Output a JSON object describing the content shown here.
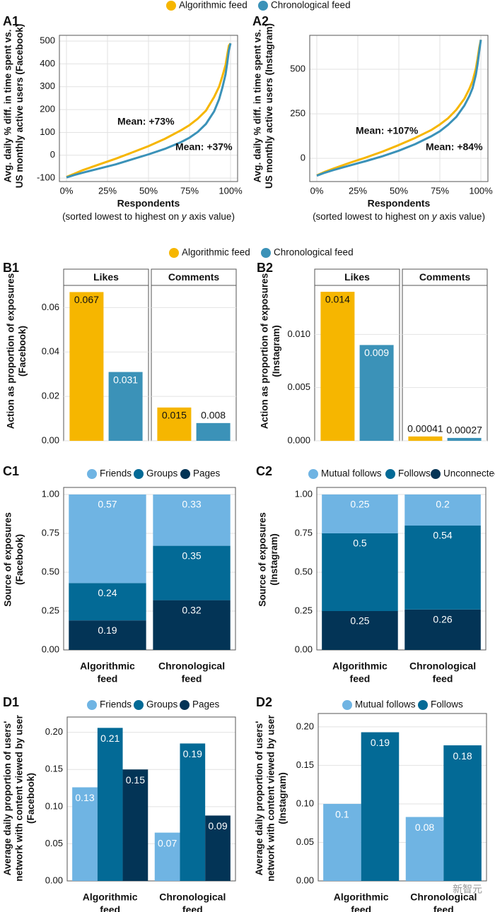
{
  "colors": {
    "algorithmic": "#F6B600",
    "chronological": "#3B92B8",
    "friends": "#6FB4E3",
    "groups": "#036A96",
    "pages": "#033456",
    "grid": "#e2e2e2",
    "watermark": "#9a9a9a"
  },
  "legendA": {
    "items": [
      "Algorithmic feed",
      "Chronological feed"
    ]
  },
  "legendB": {
    "items": [
      "Algorithmic feed",
      "Chronological feed"
    ]
  },
  "watermark": "新智元",
  "chart_data": [
    {
      "id": "A1",
      "type": "line",
      "panel_label": "A1",
      "ylabel": [
        "Avg. daily % diff. in time spent vs.",
        "US monthly active users (Facebook)"
      ],
      "xlabel": "Respondents",
      "xsublabel_pre": "(sorted lowest to highest on ",
      "xsublabel_italic": "y",
      "xsublabel_post": " axis value)",
      "xticks": [
        "0%",
        "25%",
        "50%",
        "75%",
        "100%"
      ],
      "xlim": [
        0,
        100
      ],
      "yticks": [
        -100,
        0,
        100,
        200,
        300,
        400,
        500
      ],
      "ylim": [
        -115,
        525
      ],
      "grid": true,
      "series": [
        {
          "name": "Algorithmic feed",
          "points": [
            [
              0,
              -95
            ],
            [
              5,
              -80
            ],
            [
              10,
              -65
            ],
            [
              20,
              -40
            ],
            [
              30,
              -15
            ],
            [
              40,
              12
            ],
            [
              50,
              40
            ],
            [
              60,
              72
            ],
            [
              70,
              110
            ],
            [
              75,
              132
            ],
            [
              80,
              160
            ],
            [
              85,
              195
            ],
            [
              90,
              255
            ],
            [
              93,
              300
            ],
            [
              95,
              345
            ],
            [
              97,
              395
            ],
            [
              98,
              440
            ],
            [
              99,
              480
            ],
            [
              100,
              490
            ]
          ]
        },
        {
          "name": "Chronological feed",
          "points": [
            [
              0,
              -97
            ],
            [
              5,
              -86
            ],
            [
              10,
              -76
            ],
            [
              20,
              -58
            ],
            [
              30,
              -40
            ],
            [
              40,
              -18
            ],
            [
              50,
              4
            ],
            [
              60,
              28
            ],
            [
              70,
              58
            ],
            [
              75,
              77
            ],
            [
              80,
              102
            ],
            [
              85,
              137
            ],
            [
              90,
              192
            ],
            [
              93,
              245
            ],
            [
              95,
              295
            ],
            [
              97,
              355
            ],
            [
              98,
              405
            ],
            [
              99,
              460
            ],
            [
              100,
              490
            ]
          ]
        }
      ],
      "annotations": [
        "Mean: +73%",
        "Mean: +37%"
      ]
    },
    {
      "id": "A2",
      "type": "line",
      "panel_label": "A2",
      "ylabel": [
        "Avg. daily % diff. in time spent vs.",
        "US monthly active users (Instagram)"
      ],
      "xlabel": "Respondents",
      "xsublabel_pre": "(sorted lowest to highest on ",
      "xsublabel_italic": "y",
      "xsublabel_post": " axis value)",
      "xticks": [
        "0%",
        "25%",
        "50%",
        "75%",
        "100%"
      ],
      "xlim": [
        0,
        100
      ],
      "yticks": [
        0,
        250,
        500
      ],
      "ylim": [
        -130,
        690
      ],
      "grid": true,
      "series": [
        {
          "name": "Algorithmic feed",
          "points": [
            [
              0,
              -95
            ],
            [
              5,
              -75
            ],
            [
              10,
              -58
            ],
            [
              20,
              -25
            ],
            [
              30,
              5
            ],
            [
              40,
              38
            ],
            [
              50,
              75
            ],
            [
              60,
              115
            ],
            [
              70,
              160
            ],
            [
              75,
              190
            ],
            [
              80,
              225
            ],
            [
              85,
              272
            ],
            [
              90,
              335
            ],
            [
              93,
              390
            ],
            [
              95,
              435
            ],
            [
              97,
              505
            ],
            [
              98,
              560
            ],
            [
              99,
              620
            ],
            [
              100,
              665
            ]
          ]
        },
        {
          "name": "Chronological feed",
          "points": [
            [
              0,
              -97
            ],
            [
              5,
              -80
            ],
            [
              10,
              -66
            ],
            [
              20,
              -40
            ],
            [
              30,
              -15
            ],
            [
              40,
              12
            ],
            [
              50,
              43
            ],
            [
              60,
              80
            ],
            [
              70,
              125
            ],
            [
              75,
              152
            ],
            [
              80,
              188
            ],
            [
              85,
              232
            ],
            [
              90,
              297
            ],
            [
              93,
              350
            ],
            [
              95,
              395
            ],
            [
              97,
              470
            ],
            [
              98,
              530
            ],
            [
              99,
              600
            ],
            [
              100,
              665
            ]
          ]
        }
      ],
      "annotations": [
        "Mean: +107%",
        "Mean: +84%"
      ]
    },
    {
      "id": "B1",
      "type": "bar",
      "panel_label": "B1",
      "ylabel": [
        "Action as proportion of exposures",
        "(Facebook)"
      ],
      "facets": [
        "Likes",
        "Comments"
      ],
      "series": [
        {
          "name": "Algorithmic feed",
          "values": [
            0.067,
            0.015
          ]
        },
        {
          "name": "Chronological feed",
          "values": [
            0.031,
            0.008
          ]
        }
      ],
      "labels": [
        [
          "0.067",
          "0.031"
        ],
        [
          "0.015",
          "0.008"
        ]
      ],
      "yticks": [
        "0.00",
        "0.02",
        "0.04",
        "0.06"
      ],
      "ytick_values": [
        0,
        0.02,
        0.04,
        0.06
      ],
      "ylim": [
        0,
        0.07
      ]
    },
    {
      "id": "B2",
      "type": "bar",
      "panel_label": "B2",
      "ylabel": [
        "Action as proportion of exposures",
        "(Instagram)"
      ],
      "facets": [
        "Likes",
        "Comments"
      ],
      "series": [
        {
          "name": "Algorithmic feed",
          "values": [
            0.014,
            0.00041
          ]
        },
        {
          "name": "Chronological feed",
          "values": [
            0.009,
            0.00027
          ]
        }
      ],
      "labels": [
        [
          "0.014",
          "0.009"
        ],
        [
          "0.00041",
          "0.00027"
        ]
      ],
      "yticks": [
        "0.000",
        "0.005",
        "0.010"
      ],
      "ytick_values": [
        0,
        0.005,
        0.01
      ],
      "ylim": [
        0,
        0.0146
      ]
    },
    {
      "id": "C1",
      "type": "bar",
      "stacked": true,
      "panel_label": "C1",
      "ylabel": [
        "Source of exposures",
        "(Facebook)"
      ],
      "legend": [
        "Friends",
        "Groups",
        "Pages"
      ],
      "categories": [
        [
          "Algorithmic",
          "feed"
        ],
        [
          "Chronological",
          "feed"
        ]
      ],
      "series": [
        {
          "name": "Pages",
          "values": [
            0.19,
            0.32
          ]
        },
        {
          "name": "Groups",
          "values": [
            0.24,
            0.35
          ]
        },
        {
          "name": "Friends",
          "values": [
            0.57,
            0.33
          ]
        }
      ],
      "yticks": [
        "0.00",
        "0.25",
        "0.50",
        "0.75",
        "1.00"
      ],
      "ytick_values": [
        0,
        0.25,
        0.5,
        0.75,
        1
      ],
      "ylim": [
        0,
        1
      ]
    },
    {
      "id": "C2",
      "type": "bar",
      "stacked": true,
      "panel_label": "C2",
      "ylabel": [
        "Source of exposures",
        "(Instagram)"
      ],
      "legend": [
        "Mutual follows",
        "Follows",
        "Unconnected"
      ],
      "categories": [
        [
          "Algorithmic",
          "feed"
        ],
        [
          "Chronological",
          "feed"
        ]
      ],
      "series": [
        {
          "name": "Unconnected",
          "values": [
            0.25,
            0.26
          ]
        },
        {
          "name": "Follows",
          "values": [
            0.5,
            0.54
          ]
        },
        {
          "name": "Mutual follows",
          "values": [
            0.25,
            0.2
          ]
        }
      ],
      "yticks": [
        "0.00",
        "0.25",
        "0.50",
        "0.75",
        "1.00"
      ],
      "ytick_values": [
        0,
        0.25,
        0.5,
        0.75,
        1
      ],
      "ylim": [
        0,
        1
      ]
    },
    {
      "id": "D1",
      "type": "bar",
      "panel_label": "D1",
      "ylabel": [
        "Average daily proportion of users'",
        "network with content viewed by user",
        "(Facebook)"
      ],
      "legend": [
        "Friends",
        "Groups",
        "Pages"
      ],
      "categories": [
        [
          "Algorithmic",
          "feed"
        ],
        [
          "Chronological",
          "feed"
        ]
      ],
      "series": [
        {
          "name": "Friends",
          "values": [
            0.126,
            0.065
          ]
        },
        {
          "name": "Groups",
          "values": [
            0.206,
            0.185
          ]
        },
        {
          "name": "Pages",
          "values": [
            0.15,
            0.088
          ]
        }
      ],
      "labels": [
        [
          "0.13",
          "0.21",
          "0.15"
        ],
        [
          "0.07",
          "0.19",
          "0.09"
        ]
      ],
      "yticks": [
        "0.00",
        "0.05",
        "0.10",
        "0.15",
        "0.20"
      ],
      "ytick_values": [
        0,
        0.05,
        0.1,
        0.15,
        0.2
      ],
      "ylim": [
        0,
        0.213
      ]
    },
    {
      "id": "D2",
      "type": "bar",
      "panel_label": "D2",
      "ylabel": [
        "Average daily proportion of users'",
        "network with content viewed by user",
        "(Instagram)"
      ],
      "legend": [
        "Mutual follows",
        "Follows"
      ],
      "categories": [
        [
          "Algorithmic",
          "feed"
        ],
        [
          "Chronological",
          "feed"
        ]
      ],
      "series": [
        {
          "name": "Mutual follows",
          "values": [
            0.1,
            0.083
          ]
        },
        {
          "name": "Follows",
          "values": [
            0.193,
            0.176
          ]
        }
      ],
      "labels": [
        [
          "0.1",
          "0.19"
        ],
        [
          "0.08",
          "0.18"
        ]
      ],
      "yticks": [
        "0.00",
        "0.05",
        "0.10",
        "0.15",
        "0.20"
      ],
      "ytick_values": [
        0,
        0.05,
        0.1,
        0.15,
        0.2
      ],
      "ylim": [
        0,
        0.21
      ]
    }
  ]
}
